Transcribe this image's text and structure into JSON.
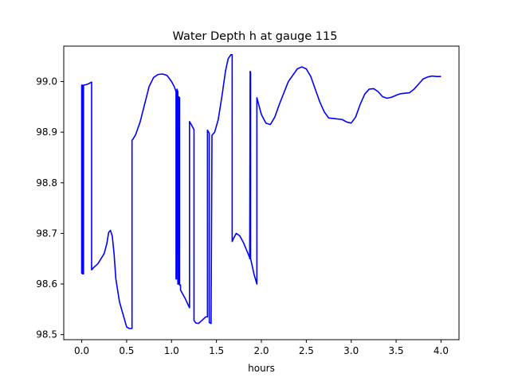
{
  "chart_data": {
    "type": "line",
    "title": "Water Depth h at gauge 115",
    "xlabel": "hours",
    "ylabel": "",
    "xlim": [
      -0.2,
      4.2
    ],
    "ylim": [
      98.49,
      99.07
    ],
    "xticks": [
      0.0,
      0.5,
      1.0,
      1.5,
      2.0,
      2.5,
      3.0,
      3.5,
      4.0
    ],
    "xtick_labels": [
      "0.0",
      "0.5",
      "1.0",
      "1.5",
      "2.0",
      "2.5",
      "3.0",
      "3.5",
      "4.0"
    ],
    "yticks": [
      98.5,
      98.6,
      98.7,
      98.8,
      98.9,
      99.0
    ],
    "ytick_labels": [
      "98.5",
      "98.6",
      "98.7",
      "98.8",
      "98.9",
      "99.0"
    ],
    "grid": false,
    "series": [
      {
        "color": "#0000ff",
        "x": [
          0.0,
          0.0,
          0.01,
          0.01,
          0.015,
          0.02,
          0.02,
          0.05,
          0.08,
          0.11,
          0.11,
          0.13,
          0.18,
          0.25,
          0.28,
          0.3,
          0.32,
          0.34,
          0.36,
          0.38,
          0.42,
          0.46,
          0.5,
          0.53,
          0.55,
          0.56,
          0.56,
          0.57,
          0.6,
          0.65,
          0.7,
          0.75,
          0.8,
          0.85,
          0.9,
          0.95,
          1.0,
          1.03,
          1.05,
          1.05,
          1.055,
          1.06,
          1.07,
          1.07,
          1.08,
          1.08,
          1.09,
          1.09,
          1.1,
          1.1,
          1.15,
          1.2,
          1.2,
          1.22,
          1.25,
          1.25,
          1.27,
          1.3,
          1.35,
          1.38,
          1.4,
          1.4,
          1.41,
          1.42,
          1.42,
          1.44,
          1.44,
          1.45,
          1.48,
          1.52,
          1.56,
          1.6,
          1.63,
          1.66,
          1.675,
          1.675,
          1.69,
          1.72,
          1.76,
          1.8,
          1.84,
          1.87,
          1.87,
          1.875,
          1.88,
          1.88,
          1.92,
          1.95,
          1.95,
          1.97,
          2.0,
          2.05,
          2.1,
          2.15,
          2.2,
          2.3,
          2.4,
          2.45,
          2.5,
          2.55,
          2.6,
          2.65,
          2.7,
          2.75,
          2.8,
          2.9,
          2.95,
          3.0,
          3.05,
          3.1,
          3.15,
          3.2,
          3.25,
          3.3,
          3.35,
          3.4,
          3.45,
          3.5,
          3.55,
          3.6,
          3.65,
          3.7,
          3.75,
          3.8,
          3.85,
          3.9,
          3.95,
          4.0
        ],
        "y": [
          98.62,
          98.993,
          98.993,
          98.62,
          98.62,
          98.62,
          98.993,
          98.994,
          98.996,
          98.999,
          98.628,
          98.632,
          98.64,
          98.66,
          98.68,
          98.702,
          98.706,
          98.695,
          98.66,
          98.61,
          98.565,
          98.54,
          98.515,
          98.512,
          98.512,
          98.512,
          98.884,
          98.886,
          98.895,
          98.92,
          98.955,
          98.99,
          99.008,
          99.014,
          99.015,
          99.012,
          99.0,
          98.99,
          98.98,
          98.61,
          98.61,
          98.985,
          98.98,
          98.6,
          98.6,
          98.97,
          98.968,
          98.598,
          98.598,
          98.588,
          98.572,
          98.553,
          98.921,
          98.915,
          98.905,
          98.528,
          98.523,
          98.522,
          98.53,
          98.535,
          98.535,
          98.904,
          98.901,
          98.898,
          98.524,
          98.522,
          98.522,
          98.894,
          98.9,
          98.925,
          98.97,
          99.02,
          99.045,
          99.053,
          99.053,
          98.684,
          98.69,
          98.7,
          98.695,
          98.682,
          98.665,
          98.652,
          98.65,
          99.02,
          99.018,
          98.65,
          98.618,
          98.6,
          98.968,
          98.955,
          98.935,
          98.918,
          98.915,
          98.93,
          98.955,
          99.0,
          99.025,
          99.029,
          99.025,
          99.01,
          98.985,
          98.96,
          98.94,
          98.928,
          98.927,
          98.925,
          98.92,
          98.918,
          98.93,
          98.955,
          98.975,
          98.985,
          98.986,
          98.98,
          98.97,
          98.967,
          98.969,
          98.973,
          98.976,
          98.977,
          98.978,
          98.985,
          98.995,
          99.005,
          99.009,
          99.011,
          99.01,
          99.01
        ]
      }
    ]
  }
}
